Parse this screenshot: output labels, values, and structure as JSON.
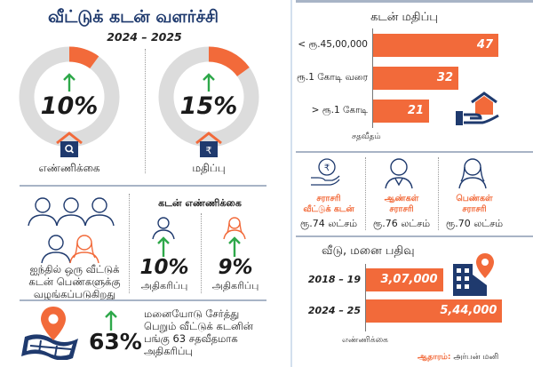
{
  "header": {
    "title": "வீட்டுக் கடன் வளர்ச்சி",
    "years": "2024 – 2025"
  },
  "growth": [
    {
      "value": "10%",
      "fraction": 0.1,
      "caption": "எண்ணிக்கை",
      "icon": "house-search-icon"
    },
    {
      "value": "15%",
      "fraction": 0.15,
      "caption": "மதிப்பு",
      "icon": "house-rupee-icon"
    }
  ],
  "women": {
    "text_lines": [
      "ஐந்தில் ஒரு வீட்டுக்",
      "கடன் பெண்களுக்கு",
      "வழங்கப்படுகிறது"
    ],
    "male_icons": 4,
    "female_icons": 1
  },
  "loan_count": {
    "heading": "கடன் எண்ணிக்கை",
    "items": [
      {
        "gender": "male",
        "value": "10%",
        "label": "அதிகரிப்பு"
      },
      {
        "gender": "female",
        "value": "9%",
        "label": "அதிகரிப்பு"
      }
    ]
  },
  "plot_loans": {
    "value": "63%",
    "text_lines": [
      "மனையோடு சேர்த்து",
      "பெறும் வீட்டுக் கடனின்",
      "பங்கு 63 சதவீதமாக",
      "அதிகரிப்பு"
    ]
  },
  "colors": {
    "accent": "#f26a3a",
    "navy": "#1f3a6e",
    "green": "#2ea84a",
    "ring_bg": "#dcdcdc"
  },
  "chart_data": [
    {
      "type": "bar",
      "orientation": "horizontal",
      "title": "கடன் மதிப்பு",
      "categories": [
        "< ரூ.45,00,000",
        "ரூ.1 கோடி வரை",
        "> ரூ.1 கோடி"
      ],
      "values": [
        47,
        32,
        21
      ],
      "value_labels": [
        "47",
        "32",
        "21"
      ],
      "xlabel": "சதவீதம்",
      "xlim": [
        0,
        50
      ]
    },
    {
      "type": "bar",
      "orientation": "horizontal",
      "title": "வீடு, மனை பதிவு",
      "categories": [
        "2018 – 19",
        "2024 – 25"
      ],
      "values": [
        307000,
        544000
      ],
      "value_labels": [
        "3,07,000",
        "5,44,000"
      ],
      "xlabel": "எண்ணிக்கை",
      "xlim": [
        0,
        560000
      ]
    }
  ],
  "averages": [
    {
      "caption_lines": [
        "சராசரி",
        "வீட்டுக் கடன்"
      ],
      "value": "ரூ.74 லட்சம்",
      "icon": "hand-rupee-icon"
    },
    {
      "caption_lines": [
        "ஆண்கள்",
        "சராசரி"
      ],
      "value": "ரூ.76 லட்சம்",
      "icon": "man-icon"
    },
    {
      "caption_lines": [
        "பெண்கள்",
        "சராசரி"
      ],
      "value": "ரூ.70 லட்சம்",
      "icon": "woman-icon"
    }
  ],
  "source": {
    "key": "ஆதாரம்:",
    "value": "அர்பன் மனி"
  }
}
